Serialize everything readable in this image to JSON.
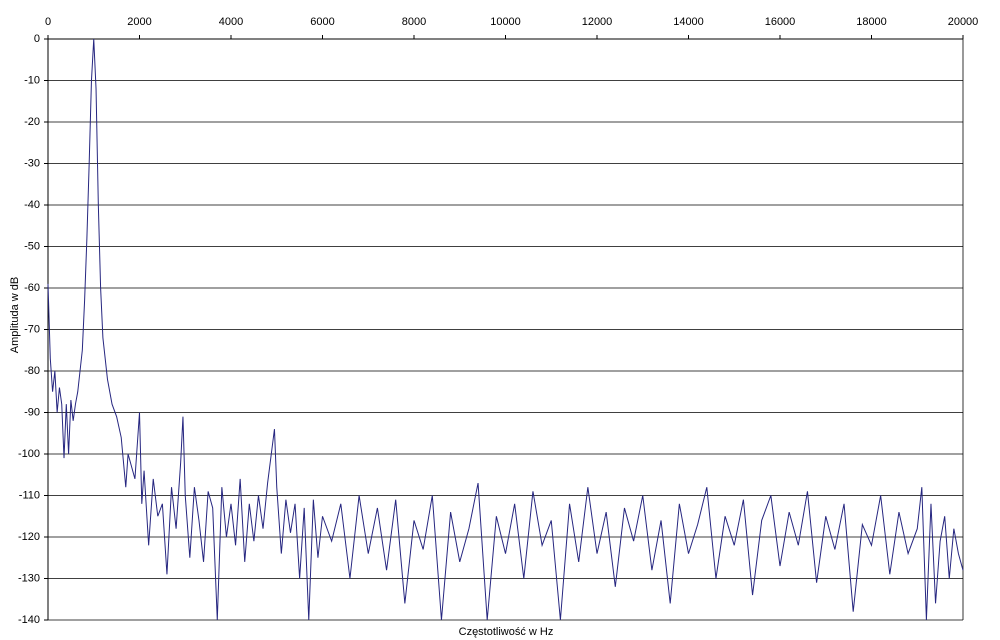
{
  "chart_data": {
    "type": "line",
    "x_label": "Częstotliwość w Hz",
    "y_label": "Amplituda w dB",
    "x": [
      0,
      50,
      100,
      150,
      200,
      250,
      300,
      350,
      400,
      450,
      500,
      550,
      600,
      650,
      700,
      750,
      800,
      850,
      900,
      950,
      1000,
      1050,
      1100,
      1150,
      1200,
      1300,
      1400,
      1500,
      1600,
      1700,
      1750,
      1800,
      1900,
      2000,
      2050,
      2100,
      2200,
      2300,
      2400,
      2500,
      2600,
      2700,
      2800,
      2900,
      2950,
      3000,
      3100,
      3200,
      3300,
      3400,
      3500,
      3600,
      3700,
      3800,
      3900,
      4000,
      4100,
      4200,
      4300,
      4400,
      4500,
      4600,
      4700,
      4800,
      4950,
      5000,
      5100,
      5200,
      5300,
      5400,
      5500,
      5600,
      5700,
      5800,
      5900,
      6000,
      6200,
      6400,
      6600,
      6800,
      7000,
      7200,
      7400,
      7600,
      7800,
      8000,
      8200,
      8400,
      8600,
      8800,
      9000,
      9200,
      9400,
      9600,
      9800,
      10000,
      10200,
      10400,
      10600,
      10800,
      11000,
      11200,
      11400,
      11600,
      11800,
      12000,
      12200,
      12400,
      12600,
      12800,
      13000,
      13200,
      13400,
      13600,
      13800,
      14000,
      14200,
      14400,
      14600,
      14800,
      15000,
      15200,
      15400,
      15600,
      15800,
      16000,
      16200,
      16400,
      16600,
      16800,
      17000,
      17200,
      17400,
      17600,
      17800,
      18000,
      18200,
      18400,
      18600,
      18800,
      19000,
      19100,
      19200,
      19300,
      19400,
      19500,
      19600,
      19700,
      19800,
      19900,
      20000
    ],
    "values": [
      -59,
      -77,
      -85,
      -80,
      -90,
      -84,
      -88,
      -101,
      -88,
      -100,
      -87,
      -92,
      -88,
      -85,
      -80,
      -75,
      -63,
      -48,
      -30,
      -10,
      0,
      -12,
      -40,
      -60,
      -72,
      -82,
      -88,
      -91,
      -96,
      -108,
      -100,
      -102,
      -106,
      -90,
      -112,
      -104,
      -122,
      -106,
      -115,
      -112,
      -129,
      -108,
      -118,
      -102,
      -91,
      -110,
      -125,
      -108,
      -116,
      -126,
      -109,
      -113,
      -140,
      -108,
      -120,
      -112,
      -122,
      -106,
      -126,
      -112,
      -121,
      -110,
      -118,
      -107,
      -94,
      -108,
      -124,
      -111,
      -119,
      -112,
      -130,
      -113,
      -140,
      -111,
      -125,
      -115,
      -121,
      -112,
      -130,
      -110,
      -124,
      -113,
      -128,
      -111,
      -136,
      -116,
      -123,
      -110,
      -140,
      -114,
      -126,
      -118,
      -107,
      -140,
      -115,
      -124,
      -112,
      -130,
      -109,
      -122,
      -116,
      -140,
      -112,
      -126,
      -108,
      -124,
      -114,
      -132,
      -113,
      -121,
      -110,
      -128,
      -116,
      -136,
      -112,
      -124,
      -117,
      -108,
      -130,
      -115,
      -122,
      -111,
      -134,
      -116,
      -110,
      -127,
      -114,
      -122,
      -109,
      -131,
      -115,
      -123,
      -112,
      -138,
      -117,
      -122,
      -110,
      -129,
      -114,
      -124,
      -118,
      -108,
      -140,
      -112,
      -136,
      -121,
      -115,
      -130,
      -118,
      -124,
      -128
    ],
    "color": "#262680",
    "xlim": [
      0,
      20000
    ],
    "ylim": [
      -140,
      0
    ],
    "xticks": [
      0,
      2000,
      4000,
      6000,
      8000,
      10000,
      12000,
      14000,
      16000,
      18000,
      20000
    ],
    "yticks": [
      0,
      -10,
      -20,
      -30,
      -40,
      -50,
      -60,
      -70,
      -80,
      -90,
      -100,
      -110,
      -120,
      -130,
      -140
    ],
    "grid": true
  }
}
